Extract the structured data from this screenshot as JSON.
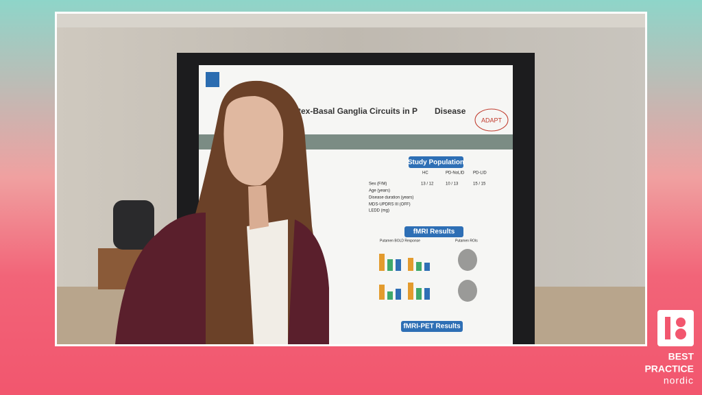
{
  "poster": {
    "title": "tex-Basal Ganglia Circuits in P",
    "title_end": "Disease",
    "badge": "ADAPT",
    "sections": [
      "Study Population",
      "fMRI Results",
      "fMRI-PET Results"
    ],
    "table": {
      "header": [
        "HC",
        "PD-NoLID",
        "PD-LID"
      ],
      "rows": [
        [
          "Sex (F/M)",
          "13 / 12",
          "10 / 13",
          "15 / 15"
        ],
        [
          "Age (years)"
        ],
        [
          "Disease duration (years)"
        ],
        [
          "MDS-UPDRS III (OFF)"
        ],
        [
          "LEDD (mg)"
        ]
      ]
    },
    "panels": [
      "Putamen BOLD Response",
      "Putamen ROIs"
    ]
  },
  "brand": {
    "line1": "BEST",
    "line2": "PRACTICE",
    "line3": "nordic"
  }
}
